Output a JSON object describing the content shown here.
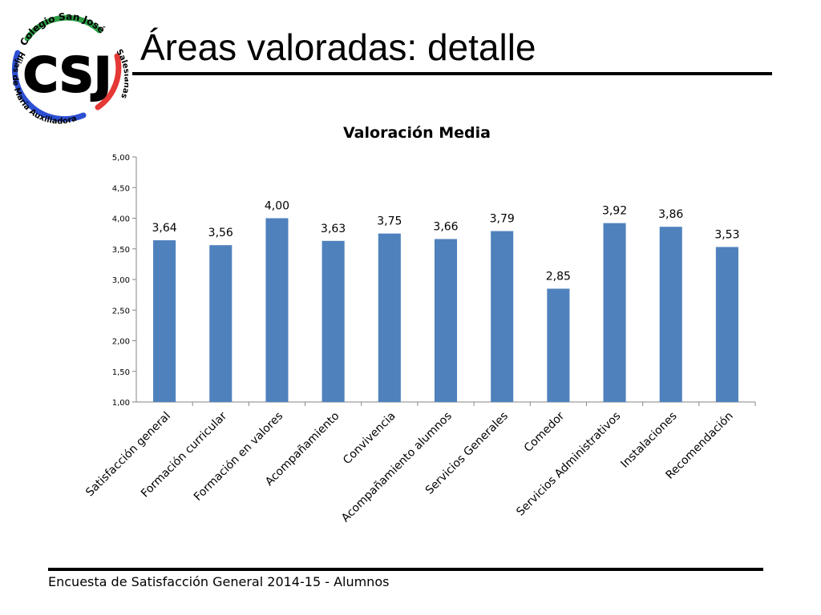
{
  "logo": {
    "monogram": "CSJ",
    "top_text": "Colegio San José",
    "left_text": "Hijas de María Auxiliadora",
    "right_text": "Salesianas"
  },
  "slide": {
    "title": "Áreas valoradas: detalle",
    "footer": "Encuesta  de Satisfacción General 2014-15 - Alumnos"
  },
  "colors": {
    "bar": "#4F81BD",
    "logo_red": "#E53935",
    "logo_green": "#2E9E45",
    "logo_blue": "#2D4FD1"
  },
  "chart_data": {
    "type": "bar",
    "title": "Valoración Media",
    "categories": [
      "Satisfacción general",
      "Formación curricular",
      "Formación en valores",
      "Acompañamiento",
      "Convivencia",
      "Acompañamiento alumnos",
      "Servicios Generales",
      "Comedor",
      "Servicios Administrativos",
      "Instalaciones",
      "Recomendación"
    ],
    "values": [
      3.64,
      3.56,
      4.0,
      3.63,
      3.75,
      3.66,
      3.79,
      2.85,
      3.92,
      3.86,
      3.53
    ],
    "value_labels": [
      "3,64",
      "3,56",
      "4,00",
      "3,63",
      "3,75",
      "3,66",
      "3,79",
      "2,85",
      "3,92",
      "3,86",
      "3,53"
    ],
    "ylim": [
      1.0,
      5.0
    ],
    "yticks": [
      1.0,
      1.5,
      2.0,
      2.5,
      3.0,
      3.5,
      4.0,
      4.5,
      5.0
    ],
    "ytick_labels": [
      "1,00",
      "1,50",
      "2,00",
      "2,50",
      "3,00",
      "3,50",
      "4,00",
      "4,50",
      "5,00"
    ],
    "xlabel": "",
    "ylabel": "",
    "grid": false,
    "legend": "none"
  }
}
